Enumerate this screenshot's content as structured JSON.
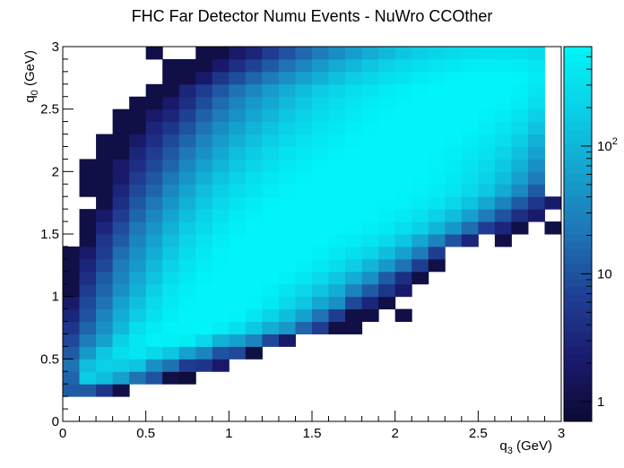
{
  "chart_data": {
    "type": "heatmap",
    "title": "FHC Far Detector Numu Events - NuWro CCOther",
    "xlabel": "q",
    "xlabel_sub": "3",
    "xlabel_unit": " (GeV)",
    "ylabel": "q",
    "ylabel_sub": "0",
    "ylabel_unit": " (GeV)",
    "xlim": [
      0,
      3
    ],
    "ylim": [
      0,
      3
    ],
    "x_ticks": [
      "0",
      "0.5",
      "1",
      "1.5",
      "2",
      "2.5",
      "3"
    ],
    "y_ticks": [
      "0",
      "0.5",
      "1",
      "1.5",
      "2",
      "2.5",
      "3"
    ],
    "x_bins": 30,
    "y_bins": 30,
    "z_scale": "log",
    "zlim": [
      0.7,
      600
    ],
    "z_ticks": [
      {
        "value": 1,
        "label": "1"
      },
      {
        "value": 10,
        "label": "10"
      },
      {
        "value": 100,
        "label": "10",
        "sup": "2"
      }
    ],
    "colormap": [
      "#0b0a33",
      "#1a1a6e",
      "#1f3f94",
      "#1f74b4",
      "#14a3cf",
      "#0bd0e6",
      "#00f4f8"
    ],
    "empty_color": "#ffffff",
    "ridge_description": "Counts peak along a diagonal band from low q3/q0 toward high q3, above the q0 = q3 - 0.3 kinematic edge",
    "z_rows_note": "z[row][col]: row 0 = q0 bin 0-0.1 GeV (bottom), col 0 = q3 bin 0-0.1 GeV (left); 0 = empty bin",
    "z": [
      [
        0,
        0,
        0,
        0,
        0,
        0,
        0,
        0,
        0,
        0,
        0,
        0,
        0,
        0,
        0,
        0,
        0,
        0,
        0,
        0,
        0,
        0,
        0,
        0,
        0,
        0,
        0,
        0,
        0,
        0
      ],
      [
        0,
        0,
        0,
        0,
        0,
        0,
        0,
        0,
        0,
        0,
        0,
        0,
        0,
        0,
        0,
        0,
        0,
        0,
        0,
        0,
        0,
        0,
        0,
        0,
        0,
        0,
        0,
        0,
        0,
        0
      ],
      [
        12,
        12,
        5,
        1,
        0,
        0,
        0,
        0,
        0,
        0,
        0,
        0,
        0,
        0,
        0,
        0,
        0,
        0,
        0,
        0,
        0,
        0,
        0,
        0,
        0,
        0,
        0,
        0,
        0,
        0
      ],
      [
        15,
        170,
        120,
        60,
        20,
        10,
        1,
        0.8,
        0,
        0,
        0,
        0,
        0,
        0,
        0,
        0,
        0,
        0,
        0,
        0,
        0,
        0,
        0,
        0,
        0,
        0,
        0,
        0,
        0,
        0
      ],
      [
        20,
        120,
        200,
        180,
        140,
        40,
        20,
        6,
        5,
        2,
        0,
        0,
        0,
        0,
        0,
        0,
        0,
        0,
        0,
        0,
        0,
        0,
        0,
        0,
        0,
        0,
        0,
        0,
        0,
        0
      ],
      [
        12,
        50,
        150,
        300,
        400,
        250,
        150,
        60,
        30,
        10,
        8,
        1,
        0,
        0,
        0,
        0,
        0,
        0,
        0,
        0,
        0,
        0,
        0,
        0,
        0,
        0,
        0,
        0,
        0,
        0
      ],
      [
        8,
        25,
        60,
        200,
        400,
        550,
        520,
        470,
        250,
        90,
        60,
        30,
        8,
        2,
        0,
        0,
        0,
        0,
        0,
        0,
        0,
        0,
        0,
        0,
        0,
        0,
        0,
        0,
        0,
        0
      ],
      [
        5,
        15,
        40,
        110,
        300,
        450,
        560,
        580,
        600,
        500,
        320,
        160,
        80,
        50,
        15,
        6,
        1,
        1,
        0,
        0,
        0,
        0,
        0,
        0,
        0,
        0,
        0,
        0,
        0,
        0
      ],
      [
        3,
        10,
        30,
        80,
        180,
        330,
        500,
        600,
        620,
        640,
        560,
        400,
        230,
        120,
        60,
        20,
        6,
        1,
        1,
        0,
        1,
        0,
        0,
        0,
        0,
        0,
        0,
        0,
        0,
        0
      ],
      [
        2,
        8,
        20,
        60,
        130,
        260,
        420,
        560,
        620,
        650,
        620,
        560,
        420,
        250,
        150,
        70,
        40,
        8,
        3,
        1,
        0,
        0,
        0,
        0,
        0,
        0,
        0,
        0,
        0,
        0
      ],
      [
        1,
        6,
        15,
        40,
        90,
        200,
        360,
        500,
        600,
        640,
        640,
        600,
        520,
        380,
        240,
        140,
        80,
        30,
        12,
        5,
        2,
        0,
        0,
        0,
        0,
        0,
        0,
        0,
        0,
        0
      ],
      [
        1,
        4,
        12,
        30,
        70,
        140,
        280,
        420,
        540,
        620,
        650,
        640,
        600,
        520,
        400,
        260,
        150,
        80,
        40,
        12,
        4,
        1,
        0,
        0,
        0,
        0,
        0,
        0,
        0,
        0
      ],
      [
        1,
        3,
        8,
        25,
        50,
        110,
        210,
        350,
        480,
        580,
        630,
        650,
        640,
        600,
        520,
        420,
        300,
        180,
        100,
        50,
        20,
        6,
        1,
        0,
        0,
        0,
        0,
        0,
        0,
        0
      ],
      [
        1,
        2,
        6,
        18,
        40,
        80,
        160,
        280,
        420,
        540,
        620,
        650,
        650,
        640,
        600,
        530,
        430,
        320,
        220,
        120,
        60,
        25,
        6,
        0,
        0,
        0,
        0,
        0,
        0,
        0
      ],
      [
        0,
        1,
        5,
        12,
        30,
        60,
        120,
        220,
        340,
        480,
        580,
        630,
        650,
        650,
        640,
        600,
        530,
        460,
        380,
        260,
        150,
        70,
        30,
        10,
        3,
        0,
        1,
        0,
        0,
        0
      ],
      [
        0,
        1,
        3,
        9,
        22,
        45,
        90,
        170,
        270,
        400,
        520,
        600,
        640,
        650,
        650,
        640,
        600,
        560,
        500,
        420,
        300,
        200,
        100,
        50,
        18,
        6,
        3,
        1,
        0,
        1
      ],
      [
        0,
        1,
        2,
        6,
        15,
        32,
        65,
        125,
        210,
        320,
        440,
        540,
        610,
        640,
        650,
        650,
        640,
        620,
        580,
        520,
        440,
        330,
        210,
        120,
        60,
        25,
        10,
        4,
        2,
        0
      ],
      [
        0,
        0,
        1,
        4,
        11,
        22,
        45,
        90,
        160,
        250,
        360,
        460,
        560,
        610,
        640,
        650,
        650,
        640,
        620,
        590,
        540,
        460,
        360,
        240,
        140,
        70,
        30,
        12,
        5,
        2
      ],
      [
        0,
        1,
        1,
        3,
        8,
        15,
        32,
        65,
        120,
        190,
        280,
        380,
        480,
        560,
        610,
        640,
        650,
        650,
        640,
        620,
        590,
        540,
        460,
        360,
        250,
        150,
        80,
        35,
        12,
        0
      ],
      [
        0,
        1,
        1,
        2,
        6,
        11,
        22,
        45,
        85,
        140,
        210,
        300,
        400,
        490,
        560,
        610,
        640,
        650,
        650,
        640,
        620,
        580,
        520,
        430,
        320,
        210,
        120,
        60,
        25,
        0
      ],
      [
        0,
        1,
        1,
        2,
        4,
        8,
        15,
        32,
        60,
        100,
        160,
        230,
        320,
        410,
        490,
        560,
        610,
        640,
        650,
        650,
        640,
        600,
        550,
        470,
        370,
        260,
        160,
        90,
        40,
        0
      ],
      [
        0,
        0,
        1,
        1,
        3,
        6,
        11,
        22,
        42,
        72,
        120,
        175,
        250,
        330,
        410,
        490,
        560,
        610,
        640,
        650,
        650,
        630,
        590,
        520,
        430,
        330,
        220,
        130,
        60,
        0
      ],
      [
        0,
        0,
        1,
        1,
        2,
        4,
        8,
        15,
        30,
        52,
        85,
        130,
        190,
        260,
        340,
        420,
        500,
        570,
        620,
        640,
        650,
        640,
        620,
        570,
        500,
        400,
        290,
        180,
        90,
        0
      ],
      [
        0,
        0,
        0,
        1,
        1,
        3,
        5,
        10,
        20,
        36,
        60,
        95,
        140,
        200,
        270,
        350,
        430,
        510,
        580,
        620,
        640,
        650,
        640,
        610,
        560,
        480,
        380,
        260,
        140,
        0
      ],
      [
        0,
        0,
        0,
        1,
        1,
        2,
        3,
        7,
        14,
        25,
        42,
        68,
        100,
        150,
        210,
        280,
        360,
        440,
        520,
        580,
        620,
        640,
        650,
        640,
        610,
        550,
        470,
        350,
        200,
        0
      ],
      [
        0,
        0,
        0,
        0,
        1,
        1,
        2,
        4,
        9,
        17,
        30,
        48,
        72,
        110,
        160,
        220,
        290,
        370,
        450,
        520,
        580,
        620,
        640,
        650,
        640,
        610,
        560,
        460,
        300,
        0
      ],
      [
        0,
        0,
        0,
        0,
        0,
        1,
        1,
        3,
        6,
        11,
        20,
        33,
        52,
        80,
        120,
        170,
        230,
        300,
        380,
        460,
        530,
        590,
        620,
        640,
        650,
        640,
        600,
        530,
        380,
        0
      ],
      [
        0,
        0,
        0,
        0,
        0,
        0,
        1,
        1,
        2,
        5,
        9,
        15,
        25,
        40,
        60,
        90,
        130,
        180,
        240,
        310,
        380,
        450,
        510,
        560,
        600,
        620,
        610,
        560,
        440,
        0
      ],
      [
        0,
        0,
        0,
        0,
        0,
        0,
        1,
        1,
        1,
        2,
        4,
        7,
        12,
        20,
        32,
        50,
        75,
        110,
        150,
        200,
        260,
        320,
        380,
        430,
        470,
        500,
        500,
        470,
        400,
        0
      ],
      [
        0,
        0,
        0,
        0,
        0,
        1,
        0,
        0,
        1,
        1,
        2,
        3,
        6,
        10,
        16,
        25,
        38,
        56,
        80,
        110,
        150,
        190,
        230,
        270,
        300,
        320,
        330,
        320,
        280,
        0
      ]
    ]
  }
}
